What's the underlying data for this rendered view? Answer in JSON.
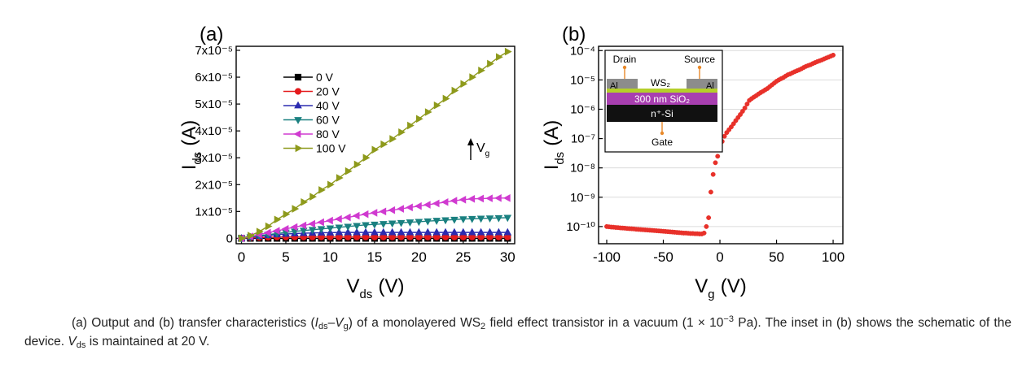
{
  "chart_data": [
    {
      "type": "line",
      "panel_label": "(a)",
      "xlabel": {
        "main": "V",
        "sub": "ds",
        "unit": "(V)"
      },
      "ylabel": {
        "main": "I",
        "sub": "ds",
        "unit": "(A)"
      },
      "x": [
        0,
        1,
        2,
        3,
        4,
        5,
        6,
        7,
        8,
        9,
        10,
        11,
        12,
        13,
        14,
        15,
        16,
        17,
        18,
        19,
        20,
        21,
        22,
        23,
        24,
        25,
        26,
        27,
        28,
        29,
        30
      ],
      "series": [
        {
          "name": "0 V",
          "color": "#000000",
          "marker": "square",
          "values": [
            0,
            0,
            0,
            0,
            0,
            0,
            0,
            0,
            0,
            0,
            0,
            0,
            0,
            0,
            0,
            0,
            0,
            0,
            0,
            0,
            0,
            0,
            0,
            0,
            0,
            0,
            0,
            0,
            0,
            0,
            0
          ]
        },
        {
          "name": "20 V",
          "color": "#e41a1c",
          "marker": "circle",
          "values": [
            0,
            2e-07,
            3e-07,
            4e-07,
            5e-07,
            5e-07,
            5e-07,
            5e-07,
            5e-07,
            5e-07,
            5e-07,
            5e-07,
            5e-07,
            5e-07,
            5e-07,
            5e-07,
            5e-07,
            5e-07,
            5e-07,
            5e-07,
            5e-07,
            5e-07,
            5e-07,
            5e-07,
            5e-07,
            5e-07,
            5e-07,
            5e-07,
            5e-07,
            5e-07,
            5e-07
          ]
        },
        {
          "name": "40 V",
          "color": "#2b2bb0",
          "marker": "triangle-up",
          "values": [
            0,
            4e-07,
            8e-07,
            1.1e-06,
            1.4e-06,
            1.6e-06,
            1.8e-06,
            1.9e-06,
            2e-06,
            2.1e-06,
            2.1e-06,
            2.2e-06,
            2.2e-06,
            2.2e-06,
            2.2e-06,
            2.2e-06,
            2.2e-06,
            2.2e-06,
            2.2e-06,
            2.2e-06,
            2.2e-06,
            2.2e-06,
            2.2e-06,
            2.2e-06,
            2.2e-06,
            2.2e-06,
            2.2e-06,
            2.2e-06,
            2.2e-06,
            2.2e-06,
            2.2e-06
          ]
        },
        {
          "name": "60 V",
          "color": "#1a8080",
          "marker": "triangle-down",
          "values": [
            0,
            5e-07,
            1e-06,
            1.4e-06,
            1.8e-06,
            2.2e-06,
            2.6e-06,
            2.9e-06,
            3.2e-06,
            3.5e-06,
            3.8e-06,
            4.1e-06,
            4.4e-06,
            4.7e-06,
            5e-06,
            5.2e-06,
            5.4e-06,
            5.6e-06,
            5.8e-06,
            6e-06,
            6.2e-06,
            6.4e-06,
            6.6e-06,
            6.8e-06,
            7e-06,
            7.2e-06,
            7.3e-06,
            7.4e-06,
            7.5e-06,
            7.6e-06,
            7.7e-06
          ]
        },
        {
          "name": "80 V",
          "color": "#d03ad0",
          "marker": "triangle-left",
          "values": [
            0,
            7e-07,
            1.4e-06,
            2.1e-06,
            2.8e-06,
            3.5e-06,
            4.2e-06,
            4.8e-06,
            5.4e-06,
            6e-06,
            6.6e-06,
            7.2e-06,
            7.8e-06,
            8.4e-06,
            9e-06,
            9.5e-06,
            1e-05,
            1.05e-05,
            1.1e-05,
            1.15e-05,
            1.2e-05,
            1.25e-05,
            1.3e-05,
            1.35e-05,
            1.4e-05,
            1.44e-05,
            1.47e-05,
            1.48e-05,
            1.49e-05,
            1.5e-05,
            1.5e-05
          ]
        },
        {
          "name": "100 V",
          "color": "#8e9a1c",
          "marker": "triangle-right",
          "values": [
            0,
            1e-06,
            2.5e-06,
            4.5e-06,
            7e-06,
            9e-06,
            1.1e-05,
            1.35e-05,
            1.55e-05,
            1.8e-05,
            2e-05,
            2.25e-05,
            2.5e-05,
            2.75e-05,
            3e-05,
            3.3e-05,
            3.5e-05,
            3.7e-05,
            3.95e-05,
            4.2e-05,
            4.45e-05,
            4.7e-05,
            4.95e-05,
            5.2e-05,
            5.5e-05,
            5.75e-05,
            6e-05,
            6.25e-05,
            6.5e-05,
            6.75e-05,
            6.95e-05
          ]
        }
      ],
      "xlim": [
        -0.6,
        30.8
      ],
      "xticks": [
        0,
        5,
        10,
        15,
        20,
        25,
        30
      ],
      "ylim": [
        -2e-06,
        7.15e-05
      ],
      "yticks": [
        0,
        {
          "value": 1e-05,
          "label": "1x10⁻⁵"
        },
        {
          "value": 2e-05,
          "label": "2x10⁻⁵"
        },
        {
          "value": 3e-05,
          "label": "3x10⁻⁵"
        },
        {
          "value": 4e-05,
          "label": "4x10⁻⁵"
        },
        {
          "value": 5e-05,
          "label": "5x10⁻⁵"
        },
        {
          "value": 6e-05,
          "label": "6x10⁻⁵"
        },
        {
          "value": 7e-05,
          "label": "7x10⁻⁵"
        }
      ],
      "grid": false,
      "legend": "upper left",
      "annotation": {
        "main": "V",
        "sub": "g"
      }
    },
    {
      "type": "scatter",
      "panel_label": "(b)",
      "xlabel": {
        "main": "V",
        "sub": "g",
        "unit": "(V)"
      },
      "ylabel": {
        "main": "I",
        "sub": "ds",
        "unit": "(A)"
      },
      "x": [
        -100,
        -98,
        -96,
        -94,
        -92,
        -90,
        -88,
        -86,
        -84,
        -82,
        -80,
        -78,
        -76,
        -74,
        -72,
        -70,
        -68,
        -66,
        -64,
        -62,
        -60,
        -58,
        -56,
        -54,
        -52,
        -50,
        -48,
        -46,
        -44,
        -42,
        -40,
        -38,
        -36,
        -34,
        -32,
        -30,
        -28,
        -26,
        -24,
        -22,
        -20,
        -18,
        -16,
        -14,
        -12,
        -10,
        -8,
        -6,
        -4,
        -2,
        0,
        2,
        4,
        6,
        8,
        10,
        12,
        14,
        16,
        18,
        20,
        22,
        24,
        26,
        28,
        30,
        32,
        34,
        36,
        38,
        40,
        42,
        44,
        46,
        48,
        50,
        52,
        54,
        56,
        58,
        60,
        62,
        64,
        66,
        68,
        70,
        72,
        74,
        76,
        78,
        80,
        82,
        84,
        86,
        88,
        90,
        92,
        94,
        96,
        98,
        100
      ],
      "values": [
        1e-10,
        9.8e-11,
        9.6e-11,
        9.5e-11,
        9.3e-11,
        9.2e-11,
        9e-11,
        8.9e-11,
        8.8e-11,
        8.6e-11,
        8.5e-11,
        8.4e-11,
        8.3e-11,
        8.1e-11,
        8e-11,
        7.9e-11,
        7.8e-11,
        7.7e-11,
        7.6e-11,
        7.5e-11,
        7.4e-11,
        7.3e-11,
        7.2e-11,
        7.1e-11,
        7e-11,
        6.9e-11,
        6.8e-11,
        6.7e-11,
        6.6e-11,
        6.5e-11,
        6.4e-11,
        6.3e-11,
        6.2e-11,
        6.1e-11,
        6e-11,
        6e-11,
        5.9e-11,
        5.8e-11,
        5.8e-11,
        5.7e-11,
        5.7e-11,
        5.6e-11,
        5.6e-11,
        6e-11,
        1e-10,
        2e-10,
        1.5e-09,
        6e-09,
        1.5e-08,
        2.5e-08,
        5e-08,
        8e-08,
        1.2e-07,
        1.6e-07,
        2e-07,
        2.5e-07,
        3.2e-07,
        4.1e-07,
        5.2e-07,
        6.6e-07,
        8.5e-07,
        1.1e-06,
        1.5e-06,
        2e-06,
        2.3e-06,
        2.6e-06,
        2.9e-06,
        3.3e-06,
        3.7e-06,
        4.1e-06,
        4.6e-06,
        5.1e-06,
        5.9e-06,
        6.8e-06,
        7.8e-06,
        9e-06,
        1e-05,
        1.1e-05,
        1.2e-05,
        1.35e-05,
        1.5e-05,
        1.6e-05,
        1.75e-05,
        1.9e-05,
        2.05e-05,
        2.2e-05,
        2.4e-05,
        2.65e-05,
        2.9e-05,
        3.1e-05,
        3.3e-05,
        3.6e-05,
        3.9e-05,
        4.2e-05,
        4.5e-05,
        4.8e-05,
        5.2e-05,
        5.6e-05,
        6e-05,
        6.5e-05,
        7e-05
      ],
      "color": "#e8312a",
      "marker": "circle",
      "xlim": [
        -107.2,
        108.6
      ],
      "xticks": [
        -100,
        -50,
        0,
        50,
        100
      ],
      "ylim": [
        2.6e-11,
        0.00014
      ],
      "yscale": "log",
      "yticks": [
        {
          "value": 1e-10,
          "label": "10⁻¹⁰"
        },
        {
          "value": 1e-09,
          "label": "10⁻⁹"
        },
        {
          "value": 1e-08,
          "label": "10⁻⁸"
        },
        {
          "value": 1e-07,
          "label": "10⁻⁷"
        },
        {
          "value": 1e-06,
          "label": "10⁻⁶"
        },
        {
          "value": 1e-05,
          "label": "10⁻⁵"
        },
        {
          "value": 0.0001,
          "label": "10⁻⁴"
        }
      ],
      "grid": true,
      "inset": {
        "drain": "Drain",
        "source": "Source",
        "gate": "Gate",
        "metal": "Al",
        "channel": "WS₂",
        "oxide": "300 nm SiO₂",
        "substrate": "n⁺-Si"
      }
    }
  ],
  "caption": [
    "(a) Output and (b) transfer characteristics (",
    "I",
    "ds",
    "–",
    "V",
    "g",
    ") of a monolayered WS",
    "2",
    " field effect transistor in a vacuum (1 × 10",
    "−3",
    " Pa). The inset in (b) shows the schematic of the device. ",
    "V",
    "ds",
    " is maintained at 20 V."
  ]
}
